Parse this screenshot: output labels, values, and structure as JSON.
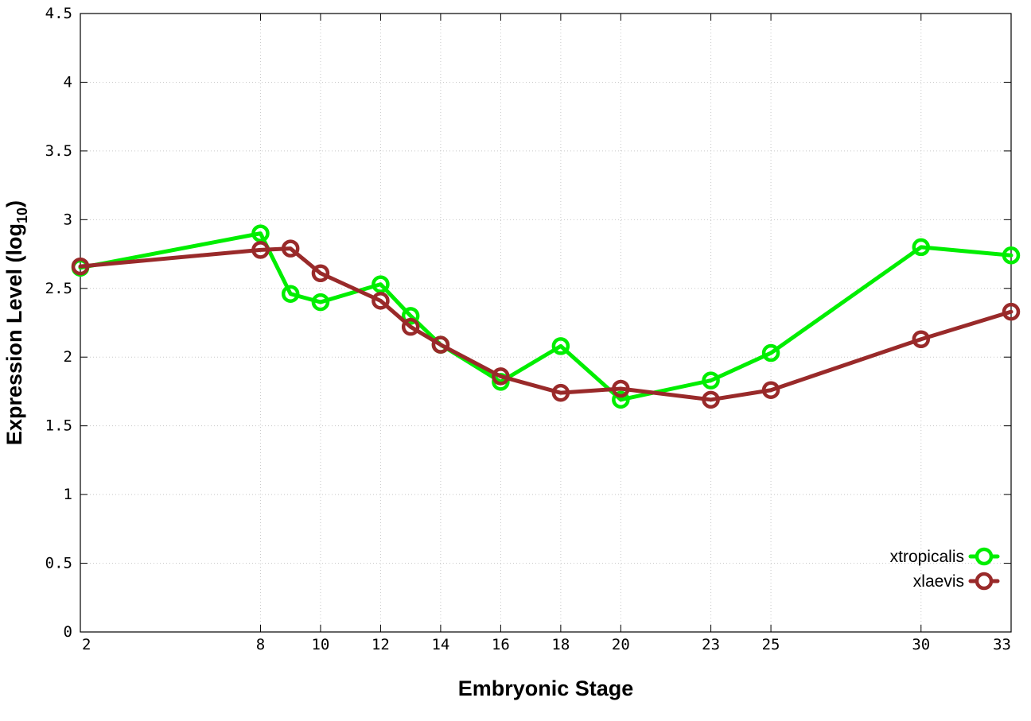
{
  "chart_data": {
    "type": "line",
    "xlabel": "Embryonic Stage",
    "ylabel": "Expression Level (log",
    "ylabel_subscript": "10",
    "ylabel_close": ")",
    "x_ticks": [
      2,
      8,
      10,
      12,
      14,
      16,
      18,
      20,
      23,
      25,
      30,
      33
    ],
    "y_ticks": [
      {
        "value": 0,
        "label": "0"
      },
      {
        "value": 0.5,
        "label": "0.5"
      },
      {
        "value": 1,
        "label": "1"
      },
      {
        "value": 1.5,
        "label": "1.5"
      },
      {
        "value": 2,
        "label": "2"
      },
      {
        "value": 2.5,
        "label": "2.5"
      },
      {
        "value": 3,
        "label": "3"
      },
      {
        "value": 3.5,
        "label": "3.5"
      },
      {
        "value": 4,
        "label": "4"
      },
      {
        "value": 4.5,
        "label": "4.5"
      }
    ],
    "xlim": [
      2,
      33
    ],
    "ylim": [
      0,
      4.5
    ],
    "grid": true,
    "legend_position": "bottom-right",
    "series": [
      {
        "name": "xtropicalis",
        "color": "#00ee00",
        "x": [
          2,
          8,
          9,
          10,
          12,
          13,
          14,
          16,
          18,
          20,
          23,
          25,
          30,
          33
        ],
        "y": [
          2.65,
          2.9,
          2.46,
          2.4,
          2.53,
          2.3,
          2.09,
          1.82,
          2.08,
          1.69,
          1.83,
          2.03,
          2.8,
          2.74
        ]
      },
      {
        "name": "xlaevis",
        "color": "#992a2a",
        "x": [
          2,
          8,
          9,
          10,
          12,
          13,
          14,
          16,
          18,
          20,
          23,
          25,
          30,
          33
        ],
        "y": [
          2.66,
          2.78,
          2.79,
          2.61,
          2.41,
          2.22,
          2.09,
          1.86,
          1.74,
          1.77,
          1.69,
          1.76,
          2.13,
          2.33
        ]
      }
    ]
  }
}
